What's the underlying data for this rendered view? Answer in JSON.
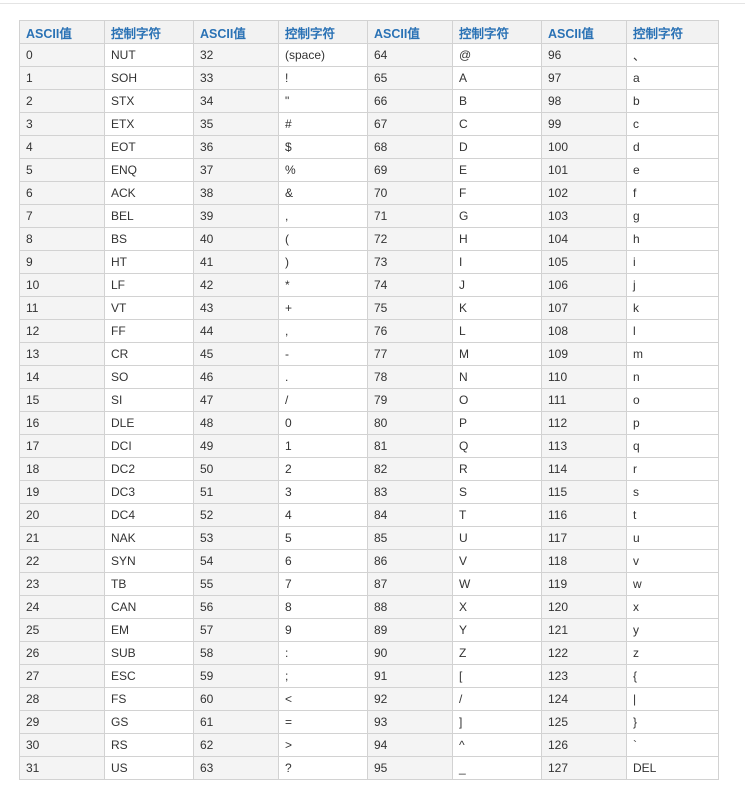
{
  "header": [
    "ASCII值",
    "控制字符",
    "ASCII值",
    "控制字符",
    "ASCII值",
    "控制字符",
    "ASCII值",
    "控制字符"
  ],
  "rows": [
    [
      "0",
      "NUT",
      "32",
      "(space)",
      "64",
      "@",
      "96",
      "、"
    ],
    [
      "1",
      "SOH",
      "33",
      "!",
      "65",
      "A",
      "97",
      "a"
    ],
    [
      "2",
      "STX",
      "34",
      "\"",
      "66",
      "B",
      "98",
      "b"
    ],
    [
      "3",
      "ETX",
      "35",
      "#",
      "67",
      "C",
      "99",
      "c"
    ],
    [
      "4",
      "EOT",
      "36",
      "$",
      "68",
      "D",
      "100",
      "d"
    ],
    [
      "5",
      "ENQ",
      "37",
      "%",
      "69",
      "E",
      "101",
      "e"
    ],
    [
      "6",
      "ACK",
      "38",
      "&",
      "70",
      "F",
      "102",
      "f"
    ],
    [
      "7",
      "BEL",
      "39",
      ",",
      "71",
      "G",
      "103",
      "g"
    ],
    [
      "8",
      "BS",
      "40",
      "(",
      "72",
      "H",
      "104",
      "h"
    ],
    [
      "9",
      "HT",
      "41",
      ")",
      "73",
      "I",
      "105",
      "i"
    ],
    [
      "10",
      "LF",
      "42",
      "*",
      "74",
      "J",
      "106",
      "j"
    ],
    [
      "11",
      "VT",
      "43",
      "+",
      "75",
      "K",
      "107",
      "k"
    ],
    [
      "12",
      "FF",
      "44",
      ",",
      "76",
      "L",
      "108",
      "l"
    ],
    [
      "13",
      "CR",
      "45",
      "-",
      "77",
      "M",
      "109",
      "m"
    ],
    [
      "14",
      "SO",
      "46",
      ".",
      "78",
      "N",
      "110",
      "n"
    ],
    [
      "15",
      "SI",
      "47",
      "/",
      "79",
      "O",
      "111",
      "o"
    ],
    [
      "16",
      "DLE",
      "48",
      "0",
      "80",
      "P",
      "112",
      "p"
    ],
    [
      "17",
      "DCI",
      "49",
      "1",
      "81",
      "Q",
      "113",
      "q"
    ],
    [
      "18",
      "DC2",
      "50",
      "2",
      "82",
      "R",
      "114",
      "r"
    ],
    [
      "19",
      "DC3",
      "51",
      "3",
      "83",
      "S",
      "115",
      "s"
    ],
    [
      "20",
      "DC4",
      "52",
      "4",
      "84",
      "T",
      "116",
      "t"
    ],
    [
      "21",
      "NAK",
      "53",
      "5",
      "85",
      "U",
      "117",
      "u"
    ],
    [
      "22",
      "SYN",
      "54",
      "6",
      "86",
      "V",
      "118",
      "v"
    ],
    [
      "23",
      "TB",
      "55",
      "7",
      "87",
      "W",
      "119",
      "w"
    ],
    [
      "24",
      "CAN",
      "56",
      "8",
      "88",
      "X",
      "120",
      "x"
    ],
    [
      "25",
      "EM",
      "57",
      "9",
      "89",
      "Y",
      "121",
      "y"
    ],
    [
      "26",
      "SUB",
      "58",
      ":",
      "90",
      "Z",
      "122",
      "z"
    ],
    [
      "27",
      "ESC",
      "59",
      ";",
      "91",
      "[",
      "123",
      "{"
    ],
    [
      "28",
      "FS",
      "60",
      "<",
      "92",
      "/",
      "124",
      "|"
    ],
    [
      "29",
      "GS",
      "61",
      "=",
      "93",
      "]",
      "125",
      "}"
    ],
    [
      "30",
      "RS",
      "62",
      ">",
      "94",
      "^",
      "126",
      "`"
    ],
    [
      "31",
      "US",
      "63",
      "?",
      "95",
      "_",
      "127",
      "DEL"
    ]
  ],
  "colors": {
    "header_text": "#2a72b5",
    "header_bg": "#f2f2f2",
    "value_col_bg": "#f4f4f4",
    "border": "#d2d2d2"
  }
}
